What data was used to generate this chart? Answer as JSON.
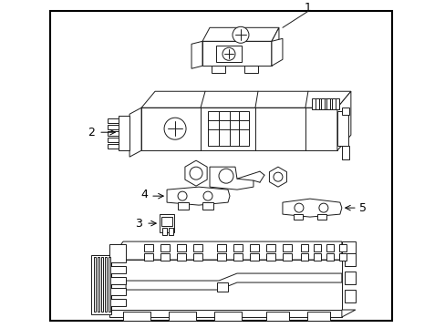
{
  "background_color": "#ffffff",
  "border_color": "#000000",
  "line_color": "#1a1a1a",
  "callout_color": "#000000",
  "callout_labels": [
    "1",
    "2",
    "3",
    "4",
    "5"
  ],
  "fig_width": 4.89,
  "fig_height": 3.6,
  "dpi": 100
}
